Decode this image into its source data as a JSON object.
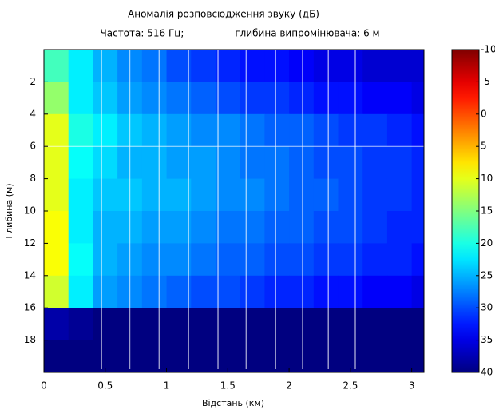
{
  "chart_data": {
    "type": "heatmap",
    "title": "Аномалія розповсюдження звуку (дБ)",
    "subtitle": [
      "Частота: 516 Гц;",
      "глибина випромінювача: 6 м"
    ],
    "x_label": "Відстань (км)",
    "y_label": "Глибина (м)",
    "xlim": [
      0,
      3.1
    ],
    "xticks": [
      0,
      0.5,
      1,
      1.5,
      2,
      2.5,
      3
    ],
    "ylim": [
      0,
      20
    ],
    "y_inverted": true,
    "yticks": [
      2,
      4,
      6,
      8,
      10,
      12,
      14,
      16,
      18
    ],
    "x_edges": [
      0,
      0.2,
      0.4,
      0.6,
      0.8,
      1,
      1.2,
      1.4,
      1.6,
      1.8,
      2,
      2.2,
      2.4,
      2.6,
      2.8,
      3,
      3.1
    ],
    "y_edges": [
      0,
      2,
      4,
      6,
      8,
      10,
      12,
      14,
      16,
      18,
      20
    ],
    "z": [
      [
        18,
        22,
        25,
        27,
        28,
        30,
        31,
        32,
        33,
        33,
        34,
        35,
        35,
        36,
        36,
        36
      ],
      [
        14,
        22,
        24,
        26,
        27,
        28,
        29,
        30,
        31,
        31,
        32,
        33,
        33,
        34,
        34,
        35
      ],
      [
        10,
        20,
        22,
        24,
        25,
        26,
        27,
        27,
        28,
        29,
        29,
        30,
        31,
        31,
        32,
        33
      ],
      [
        10,
        21,
        23,
        25,
        25,
        26,
        26,
        27,
        28,
        28,
        29,
        30,
        30,
        31,
        31,
        32
      ],
      [
        10,
        22,
        24,
        24,
        25,
        25,
        26,
        27,
        27,
        28,
        29,
        29,
        30,
        31,
        31,
        32
      ],
      [
        9,
        22,
        25,
        25,
        26,
        26,
        27,
        28,
        28,
        29,
        29,
        30,
        30,
        31,
        32,
        32
      ],
      [
        9,
        21,
        25,
        26,
        27,
        27,
        28,
        29,
        29,
        30,
        30,
        31,
        31,
        32,
        32,
        33
      ],
      [
        11,
        22,
        26,
        27,
        28,
        29,
        30,
        30,
        31,
        32,
        32,
        33,
        33,
        34,
        34,
        35
      ],
      [
        38,
        39,
        40,
        40,
        40,
        40,
        40,
        40,
        40,
        40,
        40,
        40,
        40,
        40,
        40,
        40
      ],
      [
        40,
        40,
        40,
        40,
        40,
        40,
        40,
        40,
        40,
        40,
        40,
        40,
        40,
        40,
        40,
        40
      ]
    ],
    "colormap": "jet_reversed",
    "clim": [
      -10,
      40
    ],
    "cticks": [
      -10,
      -5,
      0,
      5,
      10,
      15,
      20,
      25,
      30,
      35,
      40
    ],
    "source_depth": 6,
    "vlines": [
      0.47,
      0.7,
      0.94,
      1.18,
      1.42,
      1.65,
      1.89,
      2.11,
      2.32,
      2.54
    ]
  }
}
